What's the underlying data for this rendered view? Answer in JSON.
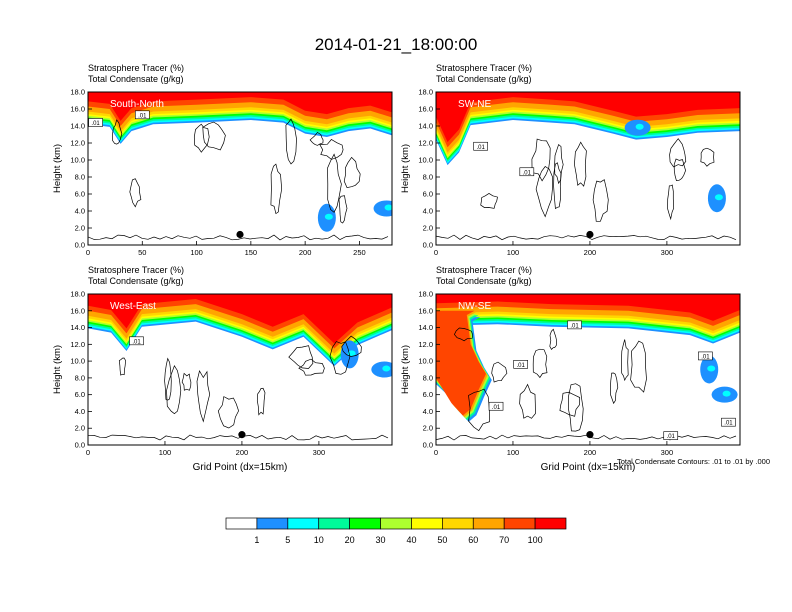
{
  "figure": {
    "title": "2014-01-21_18:00:00",
    "footnote": "Total Condensate Contours: .01 to .01 by .000"
  },
  "colors": {
    "bins": [
      "#ffffff",
      "#1e90ff",
      "#00ffff",
      "#00fa9a",
      "#00ff00",
      "#adff2f",
      "#ffff00",
      "#ffd700",
      "#ffa500",
      "#ff4500",
      "#ff0000"
    ],
    "contour": "#000000",
    "frame": "#000000"
  },
  "colorbar": {
    "labels": [
      "1",
      "5",
      "10",
      "20",
      "30",
      "40",
      "50",
      "60",
      "70",
      "100"
    ]
  },
  "chart_data": [
    {
      "type": "heatmap",
      "panel_name": "South-North",
      "header_line1": "Stratosphere Tracer   (%)",
      "header_line2": "Total Condensate   (g/kg)",
      "ylabel": "Height (km)",
      "xlabel": "",
      "xlim": [
        0,
        280
      ],
      "ylim": [
        0,
        18
      ],
      "xticks": [
        "0",
        "50",
        "100",
        "150",
        "200",
        "250"
      ],
      "xtick_values": [
        0,
        50,
        100,
        150,
        200,
        250
      ],
      "yticks": [
        "0.0",
        "2.0",
        "4.0",
        "6.0",
        "8.0",
        "10.0",
        "12.0",
        "14.0",
        "16.0",
        "18.0"
      ],
      "contour_labels": [
        {
          "text": ".01",
          "x": 7,
          "y": 14.3
        },
        {
          "text": ".01",
          "x": 50,
          "y": 15.2
        }
      ],
      "marker": {
        "x": 140,
        "y": 1.0
      },
      "tracer_top": [
        [
          0,
          16.3
        ],
        [
          20,
          16.0
        ],
        [
          30,
          14.0
        ],
        [
          40,
          15.5
        ],
        [
          60,
          16.3
        ],
        [
          100,
          16.5
        ],
        [
          150,
          16.8
        ],
        [
          180,
          16.5
        ],
        [
          200,
          15.2
        ],
        [
          220,
          14.8
        ],
        [
          240,
          15.5
        ],
        [
          260,
          15.8
        ],
        [
          280,
          15.0
        ]
      ],
      "blue_patches": [
        {
          "x": 220,
          "y": 3.2
        },
        {
          "x": 275,
          "y": 4.3
        }
      ]
    },
    {
      "type": "heatmap",
      "panel_name": "SW-NE",
      "header_line1": "Stratosphere Tracer   (%)",
      "header_line2": "Total Condensate   (g/kg)",
      "ylabel": "Height (km)",
      "xlabel": "",
      "xlim": [
        0,
        395
      ],
      "ylim": [
        0,
        18
      ],
      "xticks": [
        "0",
        "100",
        "200",
        "300"
      ],
      "xtick_values": [
        0,
        100,
        200,
        300
      ],
      "yticks": [
        "0.0",
        "2.0",
        "4.0",
        "6.0",
        "8.0",
        "10.0",
        "12.0",
        "14.0",
        "16.0",
        "18.0"
      ],
      "contour_labels": [
        {
          "text": ".01",
          "x": 58,
          "y": 11.5
        },
        {
          "text": ".01",
          "x": 118,
          "y": 8.5
        }
      ],
      "marker": {
        "x": 200,
        "y": 1.0
      },
      "tracer_top": [
        [
          0,
          14.5
        ],
        [
          15,
          11.5
        ],
        [
          30,
          13.0
        ],
        [
          45,
          16.2
        ],
        [
          100,
          16.8
        ],
        [
          150,
          16.5
        ],
        [
          180,
          16.3
        ],
        [
          230,
          15.2
        ],
        [
          260,
          14.5
        ],
        [
          300,
          14.8
        ],
        [
          340,
          15.3
        ],
        [
          395,
          15.5
        ]
      ],
      "blue_patches": [
        {
          "x": 365,
          "y": 5.5
        },
        {
          "x": 262,
          "y": 13.8
        }
      ]
    },
    {
      "type": "heatmap",
      "panel_name": "West-East",
      "header_line1": "Stratosphere Tracer   (%)",
      "header_line2": "Total Condensate   (g/kg)",
      "ylabel": "Height (km)",
      "xlabel": "Grid Point (dx=15km)",
      "xlim": [
        0,
        395
      ],
      "ylim": [
        0,
        18
      ],
      "xticks": [
        "0",
        "100",
        "200",
        "300"
      ],
      "xtick_values": [
        0,
        100,
        200,
        300
      ],
      "yticks": [
        "0.0",
        "2.0",
        "4.0",
        "6.0",
        "8.0",
        "10.0",
        "12.0",
        "14.0",
        "16.0",
        "18.0"
      ],
      "contour_labels": [
        {
          "text": ".01",
          "x": 63,
          "y": 12.3
        }
      ],
      "marker": {
        "x": 200,
        "y": 1.0
      },
      "tracer_top": [
        [
          0,
          16.0
        ],
        [
          30,
          15.5
        ],
        [
          50,
          13.3
        ],
        [
          70,
          16.2
        ],
        [
          140,
          16.8
        ],
        [
          200,
          15.0
        ],
        [
          240,
          13.5
        ],
        [
          280,
          15.0
        ],
        [
          320,
          11.5
        ],
        [
          350,
          14.0
        ],
        [
          395,
          15.8
        ]
      ],
      "blue_patches": [
        {
          "x": 340,
          "y": 10.8
        },
        {
          "x": 385,
          "y": 9.0
        }
      ]
    },
    {
      "type": "heatmap",
      "panel_name": "NW-SE",
      "header_line1": "Stratosphere Tracer   (%)",
      "header_line2": "Total Condensate   (g/kg)",
      "ylabel": "Height (km)",
      "xlabel": "Grid Point (dx=15km)",
      "xlim": [
        0,
        395
      ],
      "ylim": [
        0,
        18
      ],
      "xticks": [
        "0",
        "100",
        "200",
        "300"
      ],
      "xtick_values": [
        0,
        100,
        200,
        300
      ],
      "yticks": [
        "0.0",
        "2.0",
        "4.0",
        "6.0",
        "8.0",
        "10.0",
        "12.0",
        "14.0",
        "16.0",
        "18.0"
      ],
      "contour_labels": [
        {
          "text": ".01",
          "x": 180,
          "y": 14.2
        },
        {
          "text": ".01",
          "x": 110,
          "y": 9.5
        },
        {
          "text": ".01",
          "x": 78,
          "y": 4.5
        },
        {
          "text": ".01",
          "x": 350,
          "y": 10.5
        },
        {
          "text": ".01",
          "x": 380,
          "y": 2.6
        },
        {
          "text": ".01",
          "x": 305,
          "y": 1.0
        }
      ],
      "marker": {
        "x": 200,
        "y": 1.0
      },
      "tracer_top": [
        [
          0,
          16.3
        ],
        [
          80,
          16.5
        ],
        [
          150,
          16.2
        ],
        [
          250,
          16.0
        ],
        [
          330,
          15.2
        ],
        [
          360,
          14.2
        ],
        [
          395,
          15.5
        ]
      ],
      "blue_patches": [
        {
          "x": 355,
          "y": 9.0
        },
        {
          "x": 375,
          "y": 6.0
        }
      ]
    }
  ]
}
